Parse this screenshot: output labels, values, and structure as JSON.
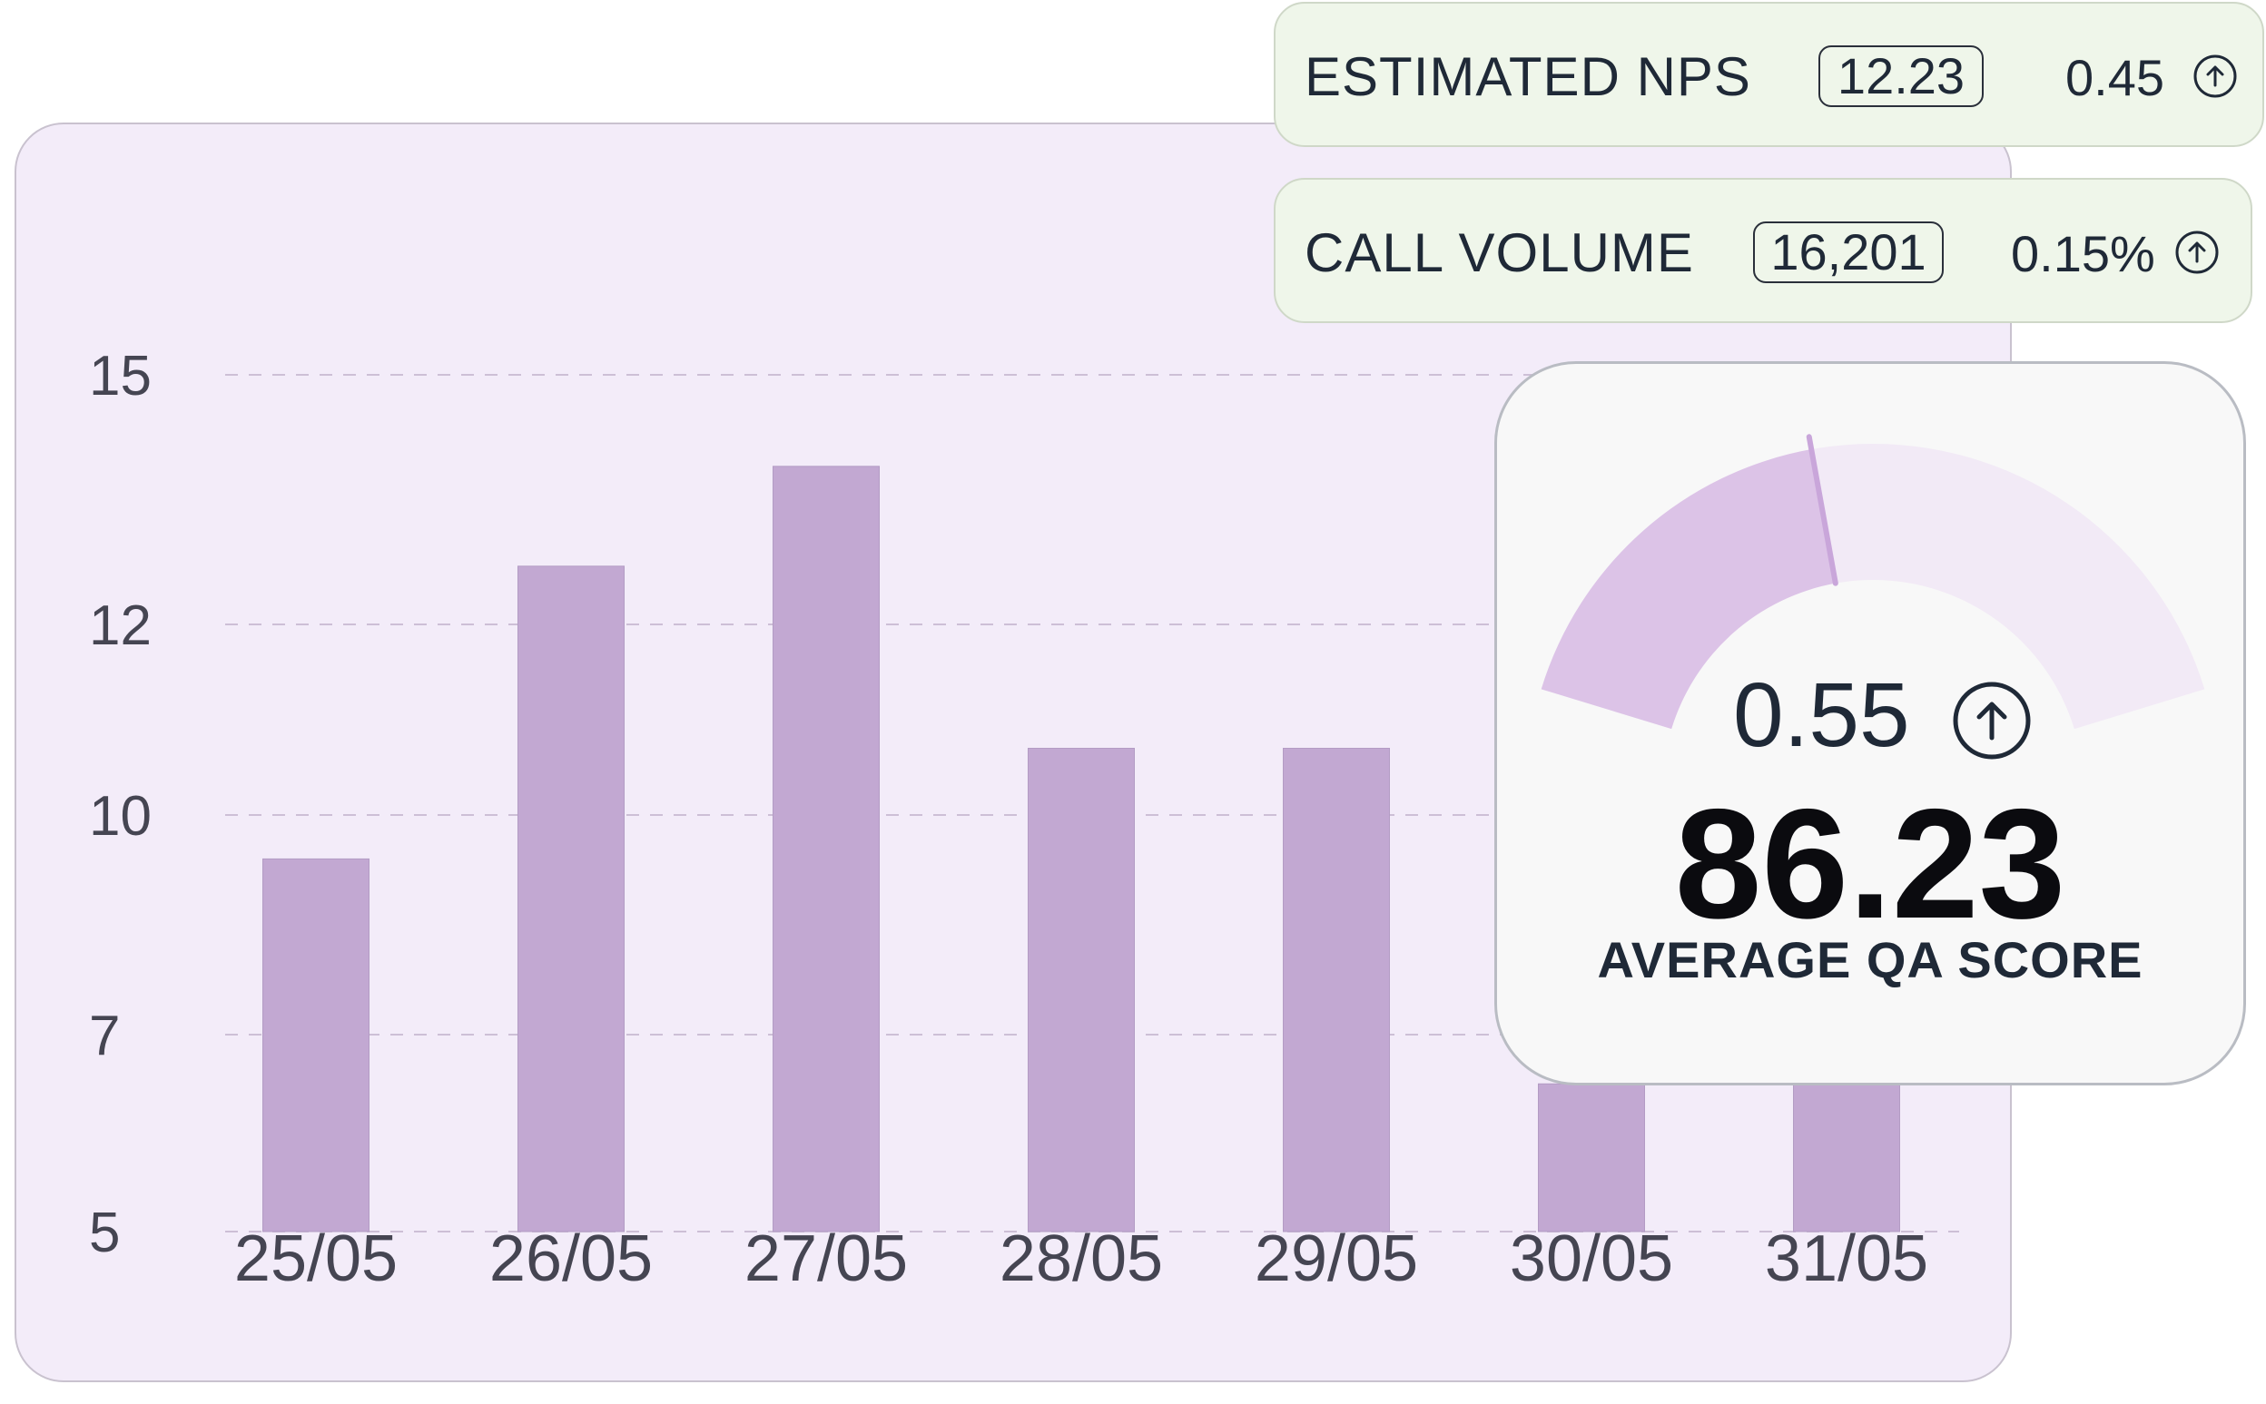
{
  "chart_data": {
    "type": "bar",
    "categories": [
      "25/05",
      "26/05",
      "27/05",
      "28/05",
      "29/05",
      "30/05",
      "31/05"
    ],
    "values": [
      9.4,
      12.7,
      13.9,
      10.7,
      10.7,
      6.5,
      6.5
    ],
    "yticks": [
      15,
      12,
      10,
      7,
      5
    ],
    "ylim": [
      5,
      15
    ],
    "title": "",
    "xlabel": "",
    "ylabel": "",
    "grid": true,
    "bar_color": "#c2a8d2"
  },
  "metrics": [
    {
      "title": "ESTIMATED NPS",
      "value": "12.23",
      "change": "0.45",
      "icon": "arrow-up-circle-icon"
    },
    {
      "title": "CALL VOLUME",
      "value": "16,201",
      "change": "0.15%",
      "icon": "arrow-up-circle-icon"
    }
  ],
  "qa": {
    "change": "0.55",
    "score": "86.23",
    "label": "AVERAGE QA SCORE",
    "gauge_fraction": 0.43,
    "icon": "arrow-up-circle-icon"
  },
  "colors": {
    "card_bg": "#f3ecf9",
    "bar": "#c2a8d2",
    "metric_bg": "#eff6ea",
    "gauge_fill": "#dcc3e7",
    "gauge_track": "#f2eaf6"
  }
}
